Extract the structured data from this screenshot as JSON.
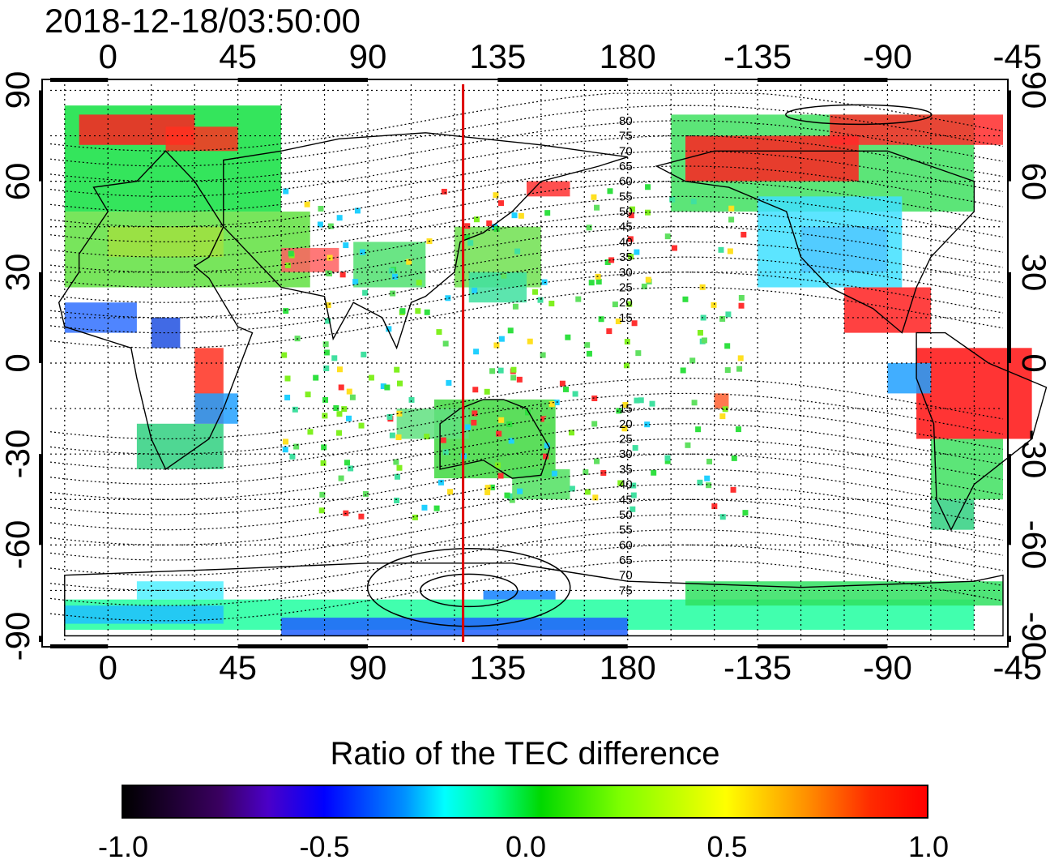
{
  "title": "2018-12-18/03:50:00",
  "colorbar": {
    "title": "Ratio of the TEC difference",
    "tick_labels": [
      "-1.0",
      "-0.5",
      "0.0",
      "0.5",
      "1.0"
    ],
    "range": [
      -1.0,
      1.0
    ],
    "colormap": [
      "#000000",
      "#4b00c8",
      "#0000ff",
      "#00ffff",
      "#00d800",
      "#ffff00",
      "#ff9000",
      "#ff0000"
    ]
  },
  "map": {
    "projection": "equirectangular",
    "lon_range": [
      -20,
      310
    ],
    "lat_range": [
      -92,
      92
    ],
    "x_tick_labels_top": [
      "0",
      "45",
      "90",
      "135",
      "180",
      "-135",
      "-90",
      "-45"
    ],
    "x_tick_labels_bottom": [
      "0",
      "45",
      "90",
      "135",
      "180",
      "-135",
      "-90",
      "-45"
    ],
    "x_tick_lons": [
      0,
      45,
      90,
      135,
      180,
      225,
      270,
      315
    ],
    "y_tick_labels_left": [
      "90",
      "60",
      "30",
      "0",
      "-30",
      "-60",
      "-90"
    ],
    "y_tick_labels_right": [
      "90",
      "60",
      "30",
      "0",
      "-30",
      "-60",
      "-90"
    ],
    "y_tick_lats": [
      90,
      60,
      30,
      0,
      -30,
      -60,
      -90
    ],
    "meridian_marker_lon": 123,
    "meridian_marker_color": "#dd0000",
    "contour_labels": [
      "80",
      "75",
      "70",
      "65",
      "60",
      "55",
      "50",
      "45",
      "40",
      "35",
      "30",
      "25",
      "20",
      "15",
      "15",
      "20",
      "25",
      "30",
      "35",
      "40",
      "45",
      "50",
      "55",
      "60",
      "65",
      "70",
      "75"
    ],
    "contour_lats": [
      80,
      75,
      70,
      65,
      60,
      55,
      50,
      45,
      40,
      35,
      30,
      25,
      20,
      15,
      -15,
      -20,
      -25,
      -30,
      -35,
      -40,
      -45,
      -50,
      -55,
      -60,
      -65,
      -70,
      -75
    ]
  }
}
